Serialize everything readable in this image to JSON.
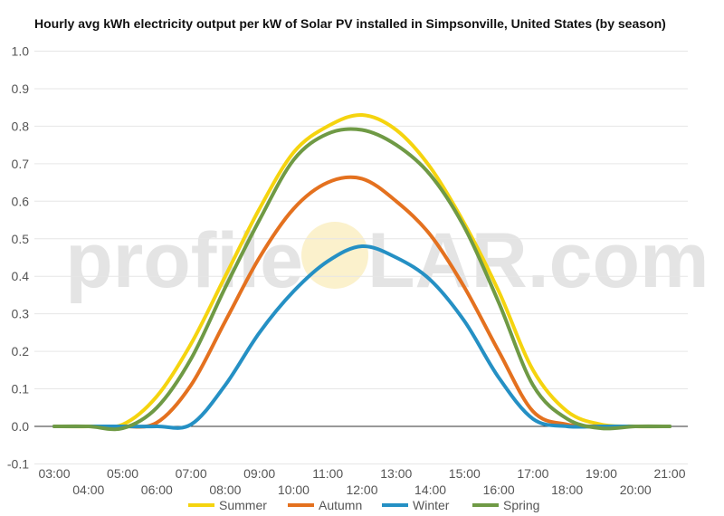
{
  "watermark": {
    "left": "profile",
    "right": "LAR.com"
  },
  "chart_data": {
    "type": "line",
    "title": "Hourly avg kWh electricity output per kW of Solar PV installed in Simpsonville, United States (by season)",
    "xlabel": "",
    "ylabel": "",
    "ylim": [
      -0.1,
      1.0
    ],
    "yticks": [
      "-0.1",
      "0.0",
      "0.1",
      "0.2",
      "0.3",
      "0.4",
      "0.5",
      "0.6",
      "0.7",
      "0.8",
      "0.9",
      "1.0"
    ],
    "x": [
      "03:00",
      "04:00",
      "05:00",
      "06:00",
      "07:00",
      "08:00",
      "09:00",
      "10:00",
      "11:00",
      "12:00",
      "13:00",
      "14:00",
      "15:00",
      "16:00",
      "17:00",
      "18:00",
      "19:00",
      "20:00",
      "21:00"
    ],
    "grid": true,
    "legend_position": "bottom",
    "series": [
      {
        "name": "Summer",
        "color": "#f5d40f",
        "values": [
          0,
          0,
          0.005,
          0.08,
          0.22,
          0.4,
          0.58,
          0.73,
          0.8,
          0.83,
          0.79,
          0.69,
          0.54,
          0.36,
          0.15,
          0.04,
          0.005,
          0,
          0
        ]
      },
      {
        "name": "Autumn",
        "color": "#e4711f",
        "values": [
          0,
          0,
          0,
          0.01,
          0.11,
          0.28,
          0.45,
          0.58,
          0.65,
          0.66,
          0.6,
          0.51,
          0.37,
          0.2,
          0.04,
          0.005,
          0,
          0,
          0
        ]
      },
      {
        "name": "Winter",
        "color": "#2590c4",
        "values": [
          0,
          0,
          0,
          0,
          0.005,
          0.11,
          0.25,
          0.36,
          0.44,
          0.48,
          0.45,
          0.39,
          0.28,
          0.13,
          0.02,
          0,
          0,
          0,
          0
        ]
      },
      {
        "name": "Spring",
        "color": "#6f9a45",
        "values": [
          0,
          0,
          -0.005,
          0.05,
          0.18,
          0.37,
          0.55,
          0.71,
          0.78,
          0.79,
          0.75,
          0.67,
          0.53,
          0.33,
          0.11,
          0.02,
          -0.005,
          0,
          0
        ]
      }
    ]
  }
}
